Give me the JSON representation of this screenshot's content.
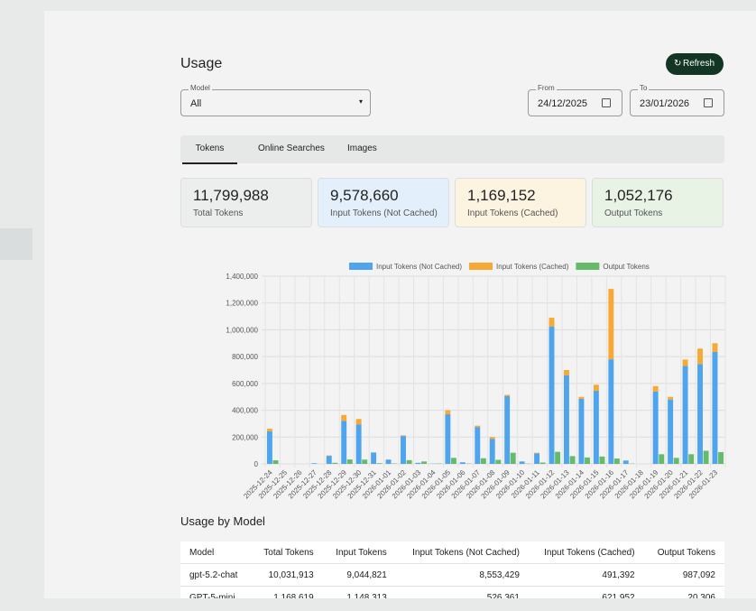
{
  "header": {
    "title": "Usage",
    "refresh": "Refresh"
  },
  "filters": {
    "model_label": "Model",
    "model_value": "All",
    "from_label": "From",
    "from_value": "24/12/2025",
    "to_label": "To",
    "to_value": "23/01/2026"
  },
  "tabs": [
    "Tokens",
    "Online Searches",
    "Images"
  ],
  "stats": [
    {
      "value": "11,799,988",
      "label": "Total Tokens"
    },
    {
      "value": "9,578,660",
      "label": "Input Tokens (Not Cached)"
    },
    {
      "value": "1,169,152",
      "label": "Input Tokens (Cached)"
    },
    {
      "value": "1,052,176",
      "label": "Output Tokens"
    }
  ],
  "chart_data": {
    "type": "bar",
    "stacked": true,
    "categories": [
      "2025-12-24",
      "2025-12-25",
      "2025-12-26",
      "2025-12-27",
      "2025-12-28",
      "2025-12-29",
      "2025-12-30",
      "2025-12-31",
      "2026-01-01",
      "2026-01-02",
      "2026-01-03",
      "2026-01-04",
      "2026-01-05",
      "2026-01-06",
      "2026-01-07",
      "2026-01-08",
      "2026-01-09",
      "2026-01-10",
      "2026-01-11",
      "2026-01-12",
      "2026-01-13",
      "2026-01-14",
      "2026-01-15",
      "2026-01-16",
      "2026-01-17",
      "2026-01-18",
      "2026-01-19",
      "2026-01-20",
      "2026-01-21",
      "2026-01-22",
      "2026-01-23"
    ],
    "series": [
      {
        "name": "Input Tokens (Not Cached)",
        "color": "#4ea5ee",
        "stack": "input",
        "values": [
          242000,
          0,
          0,
          5000,
          60000,
          320000,
          295000,
          85000,
          32000,
          208000,
          8000,
          2000,
          370000,
          12000,
          275000,
          185000,
          505000,
          18000,
          78000,
          1025000,
          660000,
          485000,
          545000,
          780000,
          25000,
          0,
          540000,
          480000,
          730000,
          745000,
          835000
        ]
      },
      {
        "name": "Input Tokens (Cached)",
        "color": "#f7a935",
        "stack": "input",
        "values": [
          20000,
          0,
          0,
          0,
          3000,
          45000,
          40000,
          0,
          0,
          5000,
          0,
          0,
          30000,
          0,
          10000,
          15000,
          10000,
          0,
          5000,
          65000,
          40000,
          15000,
          45000,
          525000,
          0,
          0,
          40000,
          20000,
          48000,
          115000,
          65000
        ]
      },
      {
        "name": "Output Tokens",
        "color": "#66bb6a",
        "stack": "output",
        "values": [
          27000,
          0,
          0,
          0,
          8000,
          33000,
          32000,
          5000,
          3000,
          28000,
          18000,
          3000,
          45000,
          2000,
          42000,
          30000,
          83000,
          2000,
          10000,
          90000,
          58000,
          48000,
          55000,
          40000,
          2000,
          0,
          72000,
          45000,
          72000,
          98000,
          88000
        ]
      }
    ],
    "ylim": [
      0,
      1400000
    ],
    "yticks": [
      0,
      {
        "value": 200000,
        "label": "200,000"
      },
      {
        "value": 400000,
        "label": "400,000"
      },
      {
        "value": 600000,
        "label": "600,000"
      },
      {
        "value": 800000,
        "label": "800,000"
      },
      {
        "value": 1000000,
        "label": "1,000,000"
      },
      {
        "value": 1200000,
        "label": "1,200,000"
      },
      {
        "value": 1400000,
        "label": "1,400,000"
      }
    ],
    "grid": true,
    "legend": "top"
  },
  "usage_table": {
    "title": "Usage by Model",
    "columns": [
      "Model",
      "Total Tokens",
      "Input Tokens",
      "Input Tokens (Not Cached)",
      "Input Tokens (Cached)",
      "Output Tokens"
    ],
    "rows": [
      [
        "gpt-5.2-chat",
        "10,031,913",
        "9,044,821",
        "8,553,429",
        "491,392",
        "987,092"
      ],
      [
        "GPT-5-mini",
        "1,168,619",
        "1,148,313",
        "526,361",
        "621,952",
        "20,306"
      ]
    ]
  }
}
